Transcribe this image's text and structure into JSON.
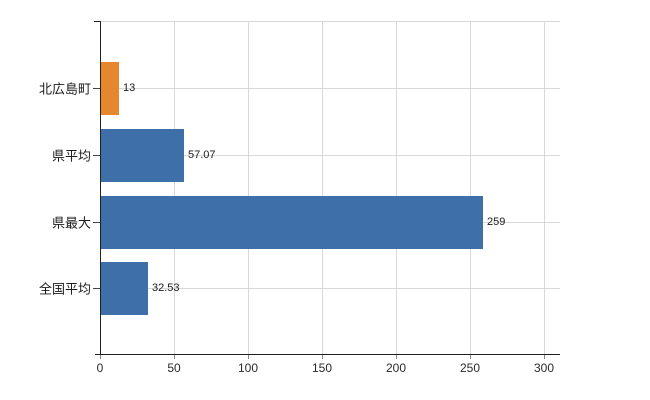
{
  "chart_data": {
    "type": "bar",
    "orientation": "horizontal",
    "title": "",
    "xlabel": "",
    "ylabel": "",
    "legend": "none",
    "categories": [
      "北広島町",
      "県平均",
      "県最大",
      "全国平均"
    ],
    "series": [
      {
        "name": "value",
        "values": [
          13,
          57.07,
          259,
          32.53
        ],
        "labels": [
          "13",
          "57.07",
          "259",
          "32.53"
        ],
        "colors": [
          "#e6862f",
          "#3e6fa8",
          "#3e6fa8",
          "#3e6fa8"
        ]
      }
    ],
    "x_axis": {
      "tick_values": [
        0,
        50,
        100,
        150,
        200,
        250,
        300
      ],
      "tick_labels": [
        "0",
        "50",
        "100",
        "150",
        "200",
        "250",
        "300"
      ],
      "range": [
        0,
        311
      ]
    },
    "grid": {
      "vertical": true,
      "horizontal_category_lines": true,
      "top_border": true,
      "color": "#d8d8d8"
    },
    "style": {
      "bar_blue": "#3e6fa8",
      "bar_orange": "#e6862f",
      "axis_color": "#222222",
      "grid_color": "#d8d8d8",
      "background": "#ffffff"
    }
  }
}
